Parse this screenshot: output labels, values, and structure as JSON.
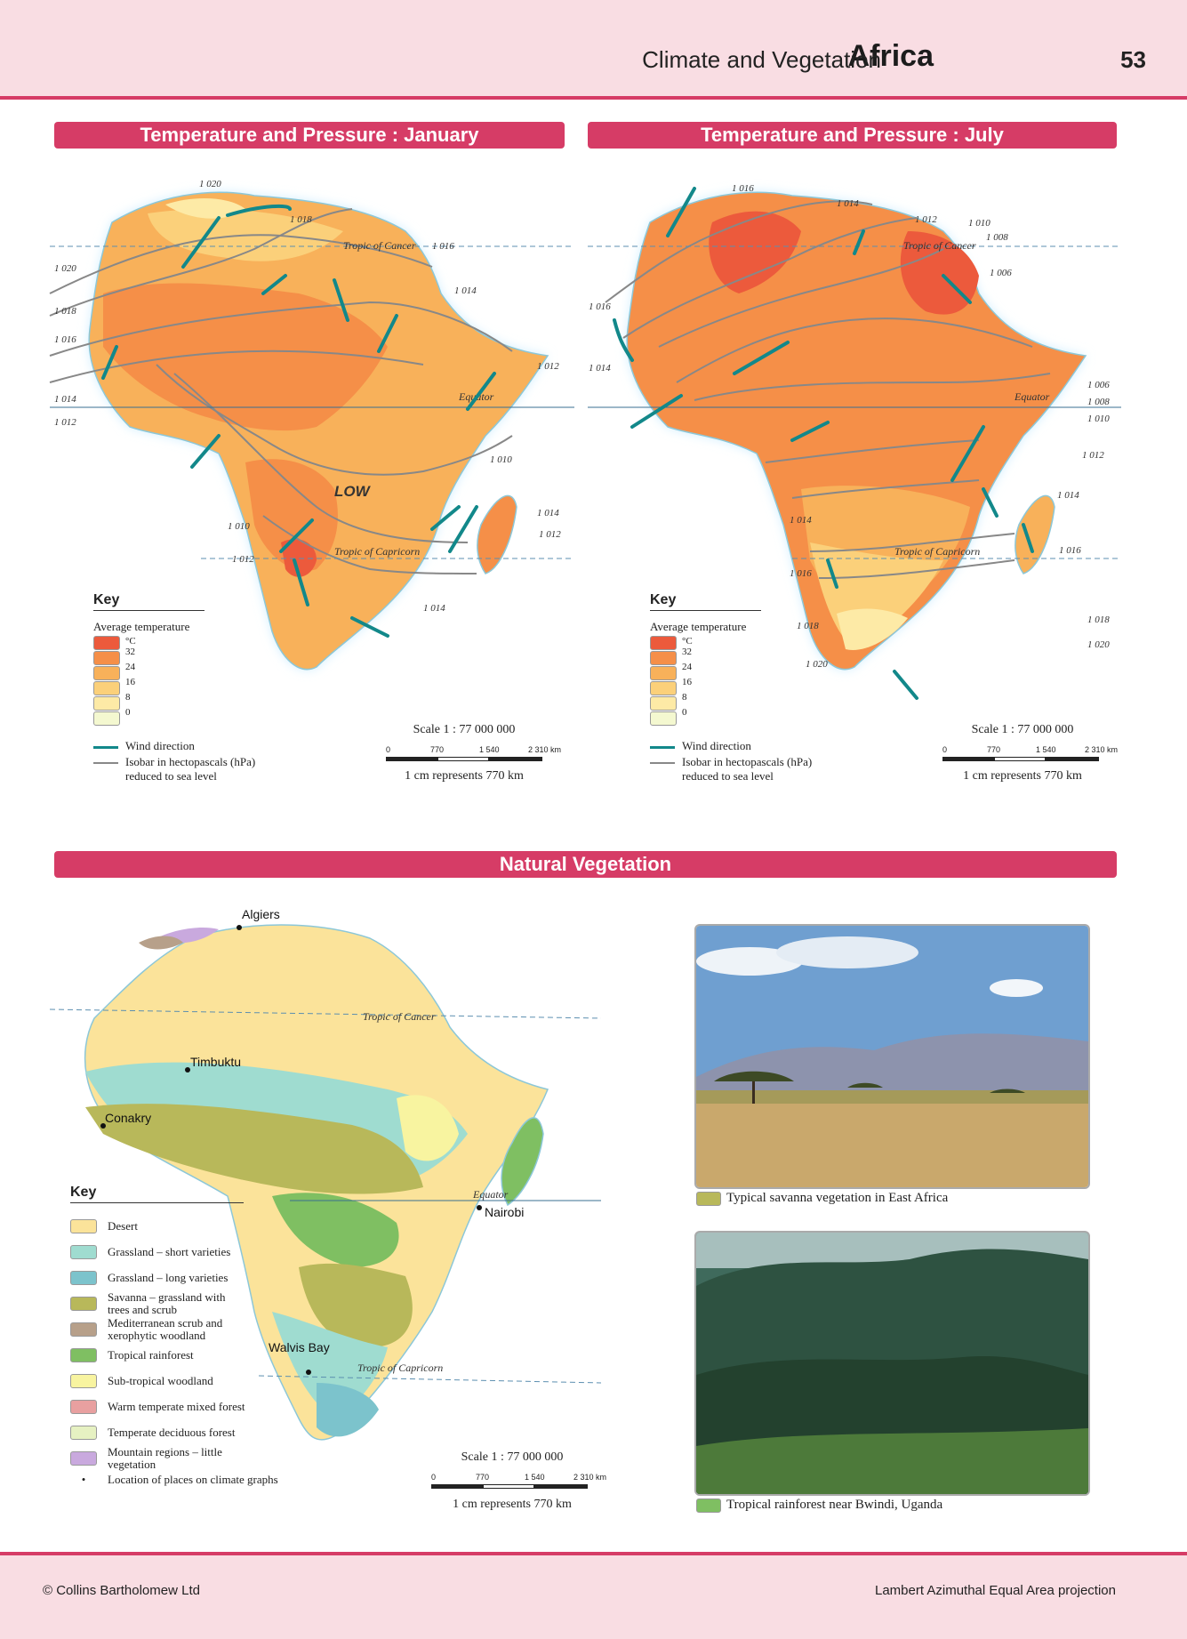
{
  "header": {
    "title": "Africa",
    "subtitle": "Climate and Vegetation",
    "page_number": "53"
  },
  "maps": {
    "january": {
      "title": "Temperature and Pressure : January",
      "pressure_label": "LOW",
      "isobars": [
        "1 020",
        "1 018",
        "1 016",
        "1 014",
        "1 012",
        "1 010",
        "1 012",
        "1 014",
        "1 016",
        "1 018",
        "1 020",
        "1 014",
        "1 012",
        "1 010",
        "1 012",
        "1 014"
      ],
      "lines": {
        "cancer": "Tropic of Cancer",
        "equator": "Equator",
        "capricorn": "Tropic of Capricorn"
      }
    },
    "july": {
      "title": "Temperature and Pressure : July",
      "isobars": [
        "1 016",
        "1 014",
        "1 012",
        "1 010",
        "1 008",
        "1 006",
        "1 016",
        "1 014",
        "1 006",
        "1 008",
        "1 010",
        "1 012",
        "1 014",
        "1 016",
        "1 014",
        "1 016",
        "1 018",
        "1 020",
        "1 018",
        "1 020"
      ],
      "lines": {
        "cancer": "Tropic of Cancer",
        "equator": "Equator",
        "capricorn": "Tropic of Capricorn"
      }
    },
    "temperature_key": {
      "title": "Key",
      "heading": "Average temperature",
      "unit": "°C",
      "values": [
        "32",
        "24",
        "16",
        "8",
        "0"
      ],
      "colors": [
        "#ec5a3c",
        "#f58f48",
        "#f8b15a",
        "#fbd07a",
        "#fdeaa6",
        "#f4f8d0"
      ],
      "wind_label": "Wind direction",
      "isobar_label_1": "Isobar in hectopascals (hPa)",
      "isobar_label_2": "reduced to sea level"
    },
    "scale": {
      "ratio": "Scale 1 : 77 000 000",
      "ticks": [
        "0",
        "770",
        "1 540",
        "2 310 km"
      ],
      "note": "1 cm represents 770 km"
    }
  },
  "vegetation": {
    "title": "Natural Vegetation",
    "places": [
      "Algiers",
      "Timbuktu",
      "Conakry",
      "Nairobi",
      "Walvis Bay"
    ],
    "lines": {
      "cancer": "Tropic of Cancer",
      "equator": "Equator",
      "capricorn": "Tropic of Capricorn"
    },
    "key_title": "Key",
    "key": [
      {
        "label": "Desert",
        "color": "#fbe39a"
      },
      {
        "label": "Grassland – short varieties",
        "color": "#9fdcd0"
      },
      {
        "label": "Grassland – long varieties",
        "color": "#7cc3cc"
      },
      {
        "label": "Savanna – grassland with trees and scrub",
        "color": "#b8b85a"
      },
      {
        "label": "Mediterranean scrub and xerophytic woodland",
        "color": "#b7a08a"
      },
      {
        "label": "Tropical rainforest",
        "color": "#7fbf62"
      },
      {
        "label": "Sub-tropical woodland",
        "color": "#f8f4a0"
      },
      {
        "label": "Warm temperate mixed forest",
        "color": "#e8a0a0"
      },
      {
        "label": "Temperate deciduous forest",
        "color": "#e6f1c2"
      },
      {
        "label": "Mountain regions – little vegetation",
        "color": "#c9a9de"
      }
    ],
    "location_label": "Location of places on climate graphs",
    "photos": [
      {
        "caption": "Typical savanna vegetation in East Africa",
        "color": "#b8b85a"
      },
      {
        "caption": "Tropical rainforest near Bwindi, Uganda",
        "color": "#7fbf62"
      }
    ]
  },
  "footer": {
    "copyright": "© Collins Bartholomew Ltd",
    "projection": "Lambert Azimuthal Equal Area projection"
  }
}
